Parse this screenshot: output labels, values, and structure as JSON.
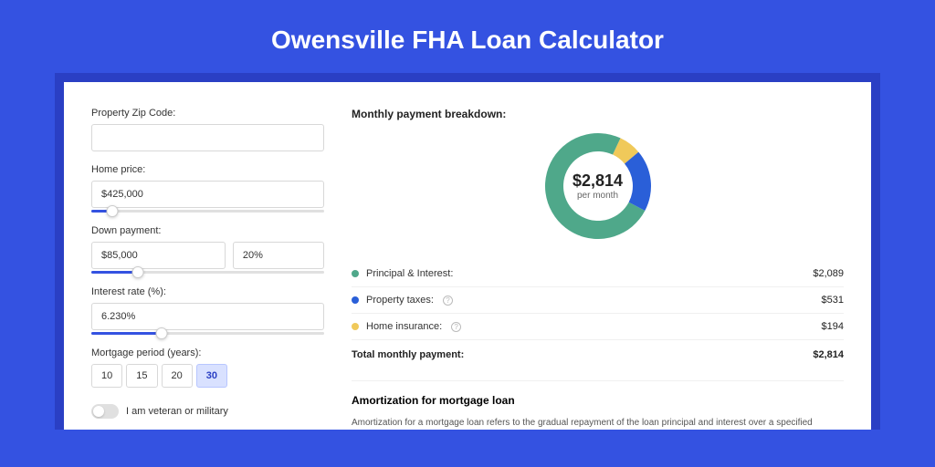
{
  "title": "Owensville FHA Loan Calculator",
  "colors": {
    "page_bg": "#3452e1",
    "frame_bg": "#2a3fc4",
    "card_bg": "#ffffff",
    "accent": "#3452e1"
  },
  "form": {
    "zip": {
      "label": "Property Zip Code:",
      "value": ""
    },
    "home_price": {
      "label": "Home price:",
      "value": "$425,000",
      "slider_pct": 9
    },
    "down_payment": {
      "label": "Down payment:",
      "amount": "$85,000",
      "percent": "20%",
      "slider_pct": 20
    },
    "interest_rate": {
      "label": "Interest rate (%):",
      "value": "6.230%",
      "slider_pct": 30
    },
    "mortgage_period": {
      "label": "Mortgage period (years):",
      "options": [
        "10",
        "15",
        "20",
        "30"
      ],
      "selected": "30"
    },
    "veteran": {
      "label": "I am veteran or military",
      "checked": false
    }
  },
  "breakdown": {
    "title": "Monthly payment breakdown:",
    "donut": {
      "type": "donut",
      "center_amount": "$2,814",
      "center_sub": "per month",
      "size": 120,
      "thickness": 20,
      "segments": [
        {
          "label": "Principal & Interest:",
          "value": "$2,089",
          "numeric": 2089,
          "color": "#4fa88a"
        },
        {
          "label": "Property taxes:",
          "value": "$531",
          "numeric": 531,
          "color": "#2a5fd8",
          "info": true
        },
        {
          "label": "Home insurance:",
          "value": "$194",
          "numeric": 194,
          "color": "#f0c95a",
          "info": true
        }
      ]
    },
    "total": {
      "label": "Total monthly payment:",
      "value": "$2,814"
    }
  },
  "amortization": {
    "title": "Amortization for mortgage loan",
    "text": "Amortization for a mortgage loan refers to the gradual repayment of the loan principal and interest over a specified"
  }
}
